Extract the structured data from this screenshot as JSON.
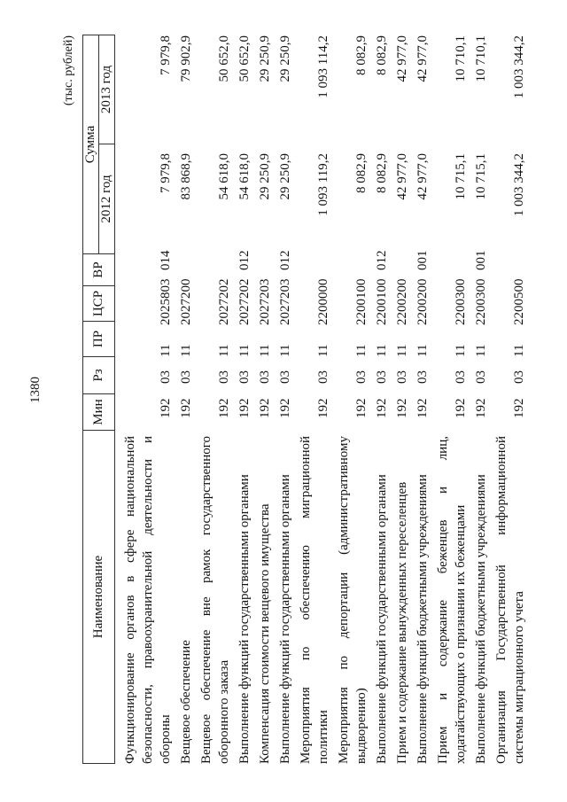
{
  "page_number": "1380",
  "units": "(тыс. рублей)",
  "headers": {
    "name": "Наименование",
    "min": "Мин",
    "rz": "Рз",
    "pr": "ПР",
    "csr": "ЦСР",
    "vr": "ВР",
    "sum": "Сумма",
    "y2012": "2012 год",
    "y2013": "2013 год"
  },
  "rows": [
    {
      "lines": [
        "Функционирование органов в сфере национальной",
        "безопасности, правоохранительной деятельности и",
        "обороны"
      ],
      "min": "192",
      "rz": "03",
      "pr": "11",
      "csr": "2025803",
      "vr": "014",
      "y2012": "7 979,8",
      "y2013": "7 979,8"
    },
    {
      "lines": [
        "Вещевое обеспечение"
      ],
      "min": "192",
      "rz": "03",
      "pr": "11",
      "csr": "2027200",
      "vr": "",
      "y2012": "83 868,9",
      "y2013": "79 902,9"
    },
    {
      "lines": [
        "Вещевое обеспечение вне рамок государственного",
        "оборонного заказа"
      ],
      "min": "192",
      "rz": "03",
      "pr": "11",
      "csr": "2027202",
      "vr": "",
      "y2012": "54 618,0",
      "y2013": "50 652,0"
    },
    {
      "lines": [
        "Выполнение функций государственными органами"
      ],
      "min": "192",
      "rz": "03",
      "pr": "11",
      "csr": "2027202",
      "vr": "012",
      "y2012": "54 618,0",
      "y2013": "50 652,0"
    },
    {
      "lines": [
        "Компенсация стоимости вещевого имущества"
      ],
      "min": "192",
      "rz": "03",
      "pr": "11",
      "csr": "2027203",
      "vr": "",
      "y2012": "29 250,9",
      "y2013": "29 250,9"
    },
    {
      "lines": [
        "Выполнение функций государственными органами"
      ],
      "min": "192",
      "rz": "03",
      "pr": "11",
      "csr": "2027203",
      "vr": "012",
      "y2012": "29 250,9",
      "y2013": "29 250,9"
    },
    {
      "lines": [
        "Мероприятия по обеспечению миграционной",
        "политики"
      ],
      "min": "192",
      "rz": "03",
      "pr": "11",
      "csr": "2200000",
      "vr": "",
      "y2012": "1 093 119,2",
      "y2013": "1 093 114,2"
    },
    {
      "lines": [
        "Мероприятия по депортации (административному",
        "выдворению)"
      ],
      "min": "192",
      "rz": "03",
      "pr": "11",
      "csr": "2200100",
      "vr": "",
      "y2012": "8 082,9",
      "y2013": "8 082,9"
    },
    {
      "lines": [
        "Выполнение функций государственными органами"
      ],
      "min": "192",
      "rz": "03",
      "pr": "11",
      "csr": "2200100",
      "vr": "012",
      "y2012": "8 082,9",
      "y2013": "8 082,9"
    },
    {
      "lines": [
        "Прием и содержание вынужденных переселенцев"
      ],
      "min": "192",
      "rz": "03",
      "pr": "11",
      "csr": "2200200",
      "vr": "",
      "y2012": "42 977,0",
      "y2013": "42 977,0"
    },
    {
      "lines": [
        "Выполнение функций бюджетными учреждениями"
      ],
      "min": "192",
      "rz": "03",
      "pr": "11",
      "csr": "2200200",
      "vr": "001",
      "y2012": "42 977,0",
      "y2013": "42 977,0"
    },
    {
      "lines": [
        "Прием и содержание беженцев и лиц,",
        "ходатайствующих о признании их беженцами"
      ],
      "min": "192",
      "rz": "03",
      "pr": "11",
      "csr": "2200300",
      "vr": "",
      "y2012": "10 715,1",
      "y2013": "10 710,1"
    },
    {
      "lines": [
        "Выполнение функций бюджетными учреждениями"
      ],
      "min": "192",
      "rz": "03",
      "pr": "11",
      "csr": "2200300",
      "vr": "001",
      "y2012": "10 715,1",
      "y2013": "10 710,1"
    },
    {
      "lines": [
        "Организация Государственной информационной",
        "системы миграционного учета"
      ],
      "min": "192",
      "rz": "03",
      "pr": "11",
      "csr": "2200500",
      "vr": "",
      "y2012": "1 003 344,2",
      "y2013": "1 003 344,2"
    }
  ]
}
